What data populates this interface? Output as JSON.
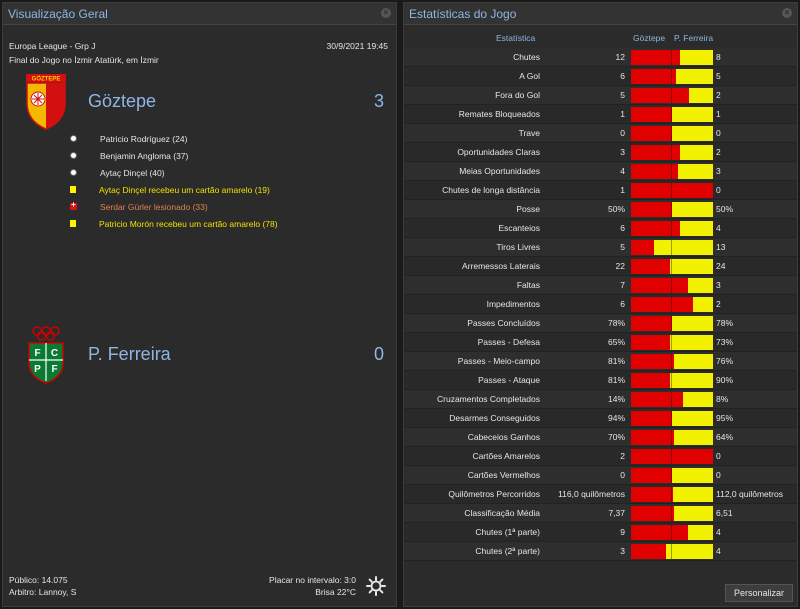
{
  "overview": {
    "title": "Visualização Geral",
    "competition": "Europa League - Grp J",
    "datetime": "30/9/2021 19:45",
    "venue": "Final do Jogo no İzmir Atatürk, em İzmir",
    "home": {
      "name": "Göztepe",
      "score": "3",
      "crest_text": "GÖZTEPE"
    },
    "away": {
      "name": "P. Ferreira",
      "score": "0",
      "crest_text": "F C P F"
    },
    "events": [
      {
        "type": "goal",
        "text": "Patricio Rodríguez (24)"
      },
      {
        "type": "goal",
        "text": "Benjamin Angloma (37)"
      },
      {
        "type": "goal",
        "text": "Aytaç Dinçel (40)"
      },
      {
        "type": "yellow",
        "text": "Aytaç Dinçel recebeu um cartão amarelo (19)"
      },
      {
        "type": "injury",
        "text": "Serdar Gürler lesionado (33)"
      },
      {
        "type": "yellow",
        "text": "Patricio Morón recebeu um cartão amarelo (78)"
      }
    ],
    "footer": {
      "attendance": "Público: 14.075",
      "referee": "Arbitro: Lannoy, S",
      "halftime": "Placar no intervalo: 3:0",
      "weather": "Brisa 22°C"
    }
  },
  "stats": {
    "title": "Estatísticas do Jogo",
    "col_stat": "Estatística",
    "col_home": "Göztepe",
    "col_away": "P. Ferreira",
    "customize_label": "Personalizar",
    "colors": {
      "home": "#e00000",
      "away": "#f2f200"
    },
    "rows": [
      {
        "label": "Chutes",
        "home": "12",
        "away": "8",
        "home_share": 0.6
      },
      {
        "label": "A Gol",
        "home": "6",
        "away": "5",
        "home_share": 0.55
      },
      {
        "label": "Fora do Gol",
        "home": "5",
        "away": "2",
        "home_share": 0.71
      },
      {
        "label": "Remates Bloqueados",
        "home": "1",
        "away": "1",
        "home_share": 0.5
      },
      {
        "label": "Trave",
        "home": "0",
        "away": "0",
        "home_share": 0.5
      },
      {
        "label": "Oportunidades Claras",
        "home": "3",
        "away": "2",
        "home_share": 0.6
      },
      {
        "label": "Meias Oportunidades",
        "home": "4",
        "away": "3",
        "home_share": 0.57
      },
      {
        "label": "Chutes de longa distância",
        "home": "1",
        "away": "0",
        "home_share": 1.0
      },
      {
        "label": "Posse",
        "home": "50%",
        "away": "50%",
        "home_share": 0.5
      },
      {
        "label": "Escanteios",
        "home": "6",
        "away": "4",
        "home_share": 0.6
      },
      {
        "label": "Tiros Livres",
        "home": "5",
        "away": "13",
        "home_share": 0.28
      },
      {
        "label": "Arremessos Laterais",
        "home": "22",
        "away": "24",
        "home_share": 0.48
      },
      {
        "label": "Faltas",
        "home": "7",
        "away": "3",
        "home_share": 0.7
      },
      {
        "label": "Impedimentos",
        "home": "6",
        "away": "2",
        "home_share": 0.75
      },
      {
        "label": "Passes Concluídos",
        "home": "78%",
        "away": "78%",
        "home_share": 0.5
      },
      {
        "label": "Passes - Defesa",
        "home": "65%",
        "away": "73%",
        "home_share": 0.47
      },
      {
        "label": "Passes - Meio-campo",
        "home": "81%",
        "away": "76%",
        "home_share": 0.52
      },
      {
        "label": "Passes - Ataque",
        "home": "81%",
        "away": "90%",
        "home_share": 0.47
      },
      {
        "label": "Cruzamentos Completados",
        "home": "14%",
        "away": "8%",
        "home_share": 0.64
      },
      {
        "label": "Desarmes Conseguidos",
        "home": "94%",
        "away": "95%",
        "home_share": 0.5
      },
      {
        "label": "Cabeceios Ganhos",
        "home": "70%",
        "away": "64%",
        "home_share": 0.52
      },
      {
        "label": "Cartões Amarelos",
        "home": "2",
        "away": "0",
        "home_share": 1.0
      },
      {
        "label": "Cartões Vermelhos",
        "home": "0",
        "away": "0",
        "home_share": 0.5
      },
      {
        "label": "Quilômetros Percorridos",
        "home": "116,0 quilômetros",
        "away": "112,0 quilômetros",
        "home_share": 0.51
      },
      {
        "label": "Classificação Média",
        "home": "7,37",
        "away": "6,51",
        "home_share": 0.53
      },
      {
        "label": "Chutes (1ª parte)",
        "home": "9",
        "away": "4",
        "home_share": 0.69
      },
      {
        "label": "Chutes (2ª parte)",
        "home": "3",
        "away": "4",
        "home_share": 0.43
      }
    ]
  }
}
